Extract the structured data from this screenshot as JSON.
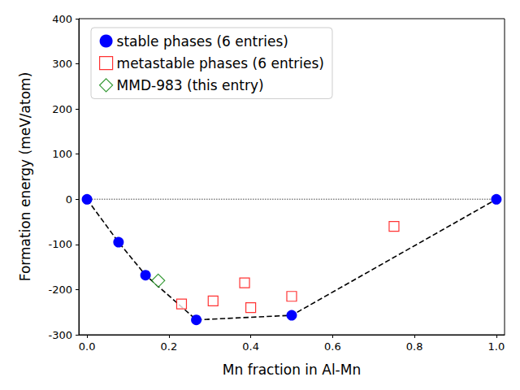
{
  "chart_data": {
    "type": "scatter",
    "x_label": "Mn fraction in Al-Mn",
    "y_label": "Formation energy (meV/atom)",
    "xlim": [
      -0.02,
      1.02
    ],
    "xticks": [
      {
        "value": 0,
        "label": "0.0"
      },
      {
        "value": 0.2,
        "label": "0.2"
      },
      {
        "value": 0.4,
        "label": "0.4"
      },
      {
        "value": 0.6,
        "label": "0.6"
      },
      {
        "value": 0.8,
        "label": "0.8"
      },
      {
        "value": 1,
        "label": "1.0"
      }
    ],
    "ylim": [
      -300,
      400
    ],
    "yticks": [
      -300,
      -200,
      -100,
      0,
      100,
      200,
      300,
      400
    ],
    "grid": false,
    "legend": "upper left",
    "series": [
      {
        "color": "gray",
        "line_style": "dotted",
        "marker": "none",
        "x": [
          0,
          1
        ],
        "values": [
          0,
          0
        ]
      },
      {
        "name": "stable phases (6 entries)",
        "color": "blue",
        "marker": "circle",
        "line_style": "dashed",
        "x": [
          0,
          0.077,
          0.143,
          0.267,
          0.5,
          1.0
        ],
        "values": [
          0,
          -95,
          -168,
          -267,
          -257,
          0
        ]
      },
      {
        "name": "metastable phases (6 entries)",
        "color": "red",
        "marker": "open_square",
        "x": [
          0.231,
          0.308,
          0.385,
          0.4,
          0.5,
          0.75
        ],
        "values": [
          -232,
          -225,
          -185,
          -240,
          -215,
          -60
        ]
      },
      {
        "name": "MMD-983 (this entry)",
        "color": "green",
        "marker": "open_diamond",
        "x": [
          0.174
        ],
        "values": [
          -180
        ]
      }
    ]
  }
}
